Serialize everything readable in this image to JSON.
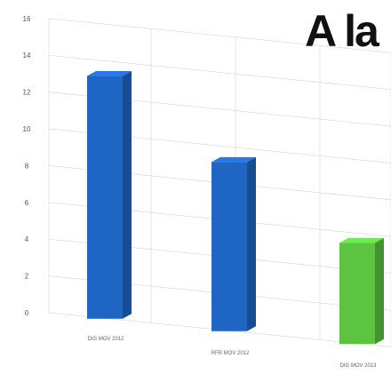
{
  "headline": "A la",
  "chart_data": {
    "type": "bar",
    "title": "",
    "xlabel": "",
    "ylabel": "",
    "ylim": [
      0,
      16
    ],
    "yticks": [
      0,
      2,
      4,
      6,
      8,
      10,
      12,
      14,
      16
    ],
    "grid": true,
    "categories": [
      "DIG MOV 2012",
      "RFR MOV 2012",
      "DIG MOV 2013"
    ],
    "values": [
      13.2,
      9.2,
      5.5
    ],
    "colors": [
      "#1f66c4",
      "#1f66c4",
      "#5cc440"
    ]
  }
}
